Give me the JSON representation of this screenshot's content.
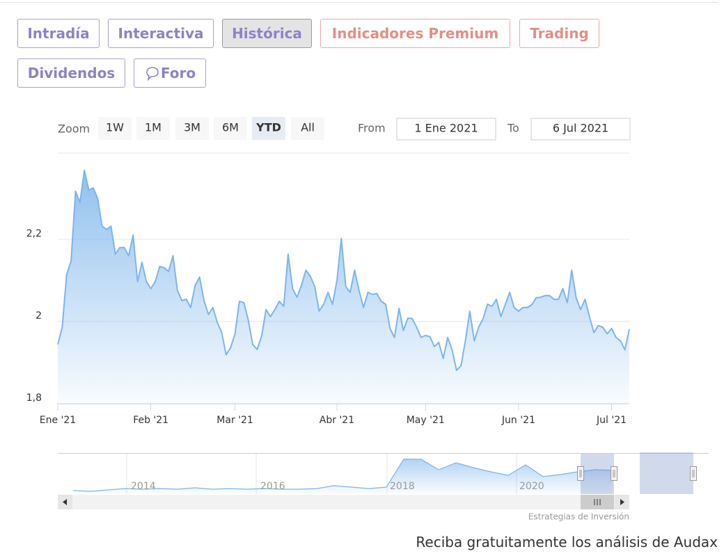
{
  "tabs": [
    "Intradía",
    "Interactiva",
    "Histórica",
    "Indicadores Premium",
    "Trading",
    "Dividendos",
    "Foro"
  ],
  "zoom": {
    "label": "Zoom",
    "buttons": [
      "1W",
      "1M",
      "3M",
      "6M",
      "YTD",
      "All"
    ]
  },
  "range": {
    "from_label": "From",
    "from": "1 Ene 2021",
    "to_label": "To",
    "to": "6 Jul 2021"
  },
  "chart_data": {
    "type": "area",
    "color": "#7cb5ec",
    "grid": true,
    "ylim": [
      1.8,
      2.41
    ],
    "yticks": [
      {
        "value": 1.8,
        "label": "1,8"
      },
      2,
      {
        "value": 2.2,
        "label": "2,2"
      }
    ],
    "categories": [
      "Ene '21",
      null,
      null,
      null,
      null,
      null,
      null,
      null,
      null,
      null,
      null,
      null,
      null,
      null,
      null,
      null,
      null,
      null,
      null,
      null,
      null,
      "Feb '21",
      null,
      null,
      null,
      null,
      null,
      null,
      null,
      null,
      null,
      null,
      null,
      null,
      null,
      null,
      null,
      null,
      null,
      null,
      "Mar '21",
      null,
      null,
      null,
      null,
      null,
      null,
      null,
      null,
      null,
      null,
      null,
      null,
      null,
      null,
      null,
      null,
      null,
      null,
      null,
      null,
      null,
      null,
      "Abr '21",
      null,
      null,
      null,
      null,
      null,
      null,
      null,
      null,
      null,
      null,
      null,
      null,
      null,
      null,
      null,
      null,
      null,
      null,
      null,
      "May '21",
      null,
      null,
      null,
      null,
      null,
      null,
      null,
      null,
      null,
      null,
      null,
      null,
      null,
      null,
      null,
      null,
      null,
      null,
      null,
      null,
      "Jun '21",
      null,
      null,
      null,
      null,
      null,
      null,
      null,
      null,
      null,
      null,
      null,
      null,
      null,
      null,
      null,
      null,
      null,
      null,
      null,
      null,
      "Jul '21",
      null,
      null,
      null,
      null
    ],
    "values": [
      1.944,
      1.986,
      2.114,
      2.147,
      2.317,
      2.29,
      2.368,
      2.32,
      2.325,
      2.3,
      2.232,
      2.224,
      2.232,
      2.164,
      2.18,
      2.18,
      2.16,
      2.21,
      2.097,
      2.144,
      2.097,
      2.08,
      2.097,
      2.134,
      2.131,
      2.122,
      2.16,
      2.076,
      2.051,
      2.054,
      2.034,
      2.088,
      2.108,
      2.051,
      2.017,
      2.034,
      1.998,
      1.973,
      1.919,
      1.936,
      1.97,
      2.049,
      2.046,
      2.003,
      1.944,
      1.932,
      1.964,
      2.029,
      2.012,
      2.029,
      2.049,
      2.037,
      2.164,
      2.08,
      2.059,
      2.088,
      2.125,
      2.11,
      2.085,
      2.025,
      2.042,
      2.071,
      2.042,
      2.1,
      2.202,
      2.085,
      2.071,
      2.125,
      2.075,
      2.034,
      2.071,
      2.066,
      2.068,
      2.049,
      2.042,
      1.983,
      1.961,
      2.032,
      1.978,
      2.008,
      2.007,
      1.986,
      1.961,
      1.966,
      1.963,
      1.939,
      1.949,
      1.91,
      1.961,
      1.931,
      1.881,
      1.892,
      1.953,
      2.025,
      1.953,
      1.986,
      2.007,
      2.042,
      2.037,
      2.054,
      2.012,
      2.041,
      2.071,
      2.034,
      2.025,
      2.034,
      2.034,
      2.041,
      2.058,
      2.059,
      2.063,
      2.063,
      2.054,
      2.054,
      2.08,
      2.046,
      2.125,
      2.058,
      2.029,
      2.054,
      2.012,
      1.973,
      1.99,
      1.986,
      1.97,
      1.983,
      1.961,
      1.953,
      1.931,
      1.981
    ]
  },
  "navigator": {
    "labels": [
      "2014",
      "2016",
      "2018",
      "2020"
    ],
    "ylim": [
      0,
      2.5
    ],
    "values": [
      0.22,
      0.17,
      0.26,
      0.34,
      0.3,
      0.34,
      0.3,
      0.39,
      0.3,
      0.34,
      0.3,
      0.34,
      0.3,
      0.3,
      0.34,
      0.52,
      0.43,
      0.34,
      0.43,
      2.16,
      2.16,
      1.51,
      1.94,
      1.64,
      1.38,
      1.16,
      1.81,
      1.08,
      1.21,
      1.38,
      1.51,
      1.47
    ]
  },
  "credit": "Estrategias de Inversión",
  "footer": "Reciba gratuitamente los análisis de Audax"
}
